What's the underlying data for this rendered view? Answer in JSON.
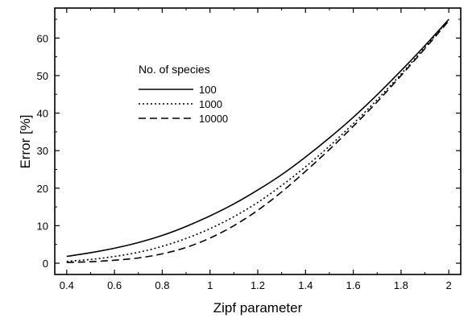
{
  "chart_data": {
    "type": "line",
    "title": "",
    "xlabel": "Zipf parameter",
    "ylabel": "Error [%]",
    "xlim": [
      0.35,
      2.05
    ],
    "ylim": [
      -3,
      68
    ],
    "x_ticks": [
      0.4,
      0.6,
      0.8,
      1,
      1.2,
      1.4,
      1.6,
      1.8,
      2
    ],
    "x_tick_labels": [
      "0.4",
      "0.6",
      "0.8",
      "1",
      "1.2",
      "1.4",
      "1.6",
      "1.8",
      "2"
    ],
    "y_ticks": [
      0,
      10,
      20,
      30,
      40,
      50,
      60
    ],
    "y_tick_labels": [
      "0",
      "10",
      "20",
      "30",
      "40",
      "50",
      "60"
    ],
    "grid": false,
    "legend": {
      "title": "No. of species",
      "position": "upper-left"
    },
    "series": [
      {
        "name": "100",
        "style": "solid",
        "x": [
          0.4,
          0.5,
          0.6,
          0.7,
          0.8,
          0.9,
          1.0,
          1.1,
          1.2,
          1.3,
          1.4,
          1.5,
          1.6,
          1.7,
          1.8,
          1.9,
          2.0
        ],
        "values": [
          1.8,
          2.8,
          4.0,
          5.5,
          7.4,
          9.8,
          12.6,
          15.8,
          19.5,
          23.6,
          28.3,
          33.4,
          38.9,
          44.9,
          51.3,
          58.0,
          65.0
        ]
      },
      {
        "name": "1000",
        "style": "dotted",
        "x": [
          0.4,
          0.5,
          0.6,
          0.7,
          0.8,
          0.9,
          1.0,
          1.1,
          1.2,
          1.3,
          1.4,
          1.5,
          1.6,
          1.7,
          1.8,
          1.9,
          2.0
        ],
        "values": [
          0.5,
          1.0,
          1.8,
          2.9,
          4.5,
          6.6,
          9.2,
          12.4,
          16.2,
          20.7,
          25.7,
          31.2,
          37.2,
          43.6,
          50.4,
          57.5,
          64.9
        ]
      },
      {
        "name": "10000",
        "style": "dashed",
        "x": [
          0.4,
          0.5,
          0.6,
          0.7,
          0.8,
          0.9,
          1.0,
          1.1,
          1.2,
          1.3,
          1.4,
          1.5,
          1.6,
          1.7,
          1.8,
          1.9,
          2.0
        ],
        "values": [
          0.2,
          0.4,
          0.8,
          1.4,
          2.5,
          4.2,
          6.7,
          10.0,
          14.1,
          19.0,
          24.5,
          30.3,
          36.5,
          43.0,
          50.0,
          57.2,
          64.6
        ]
      }
    ]
  }
}
